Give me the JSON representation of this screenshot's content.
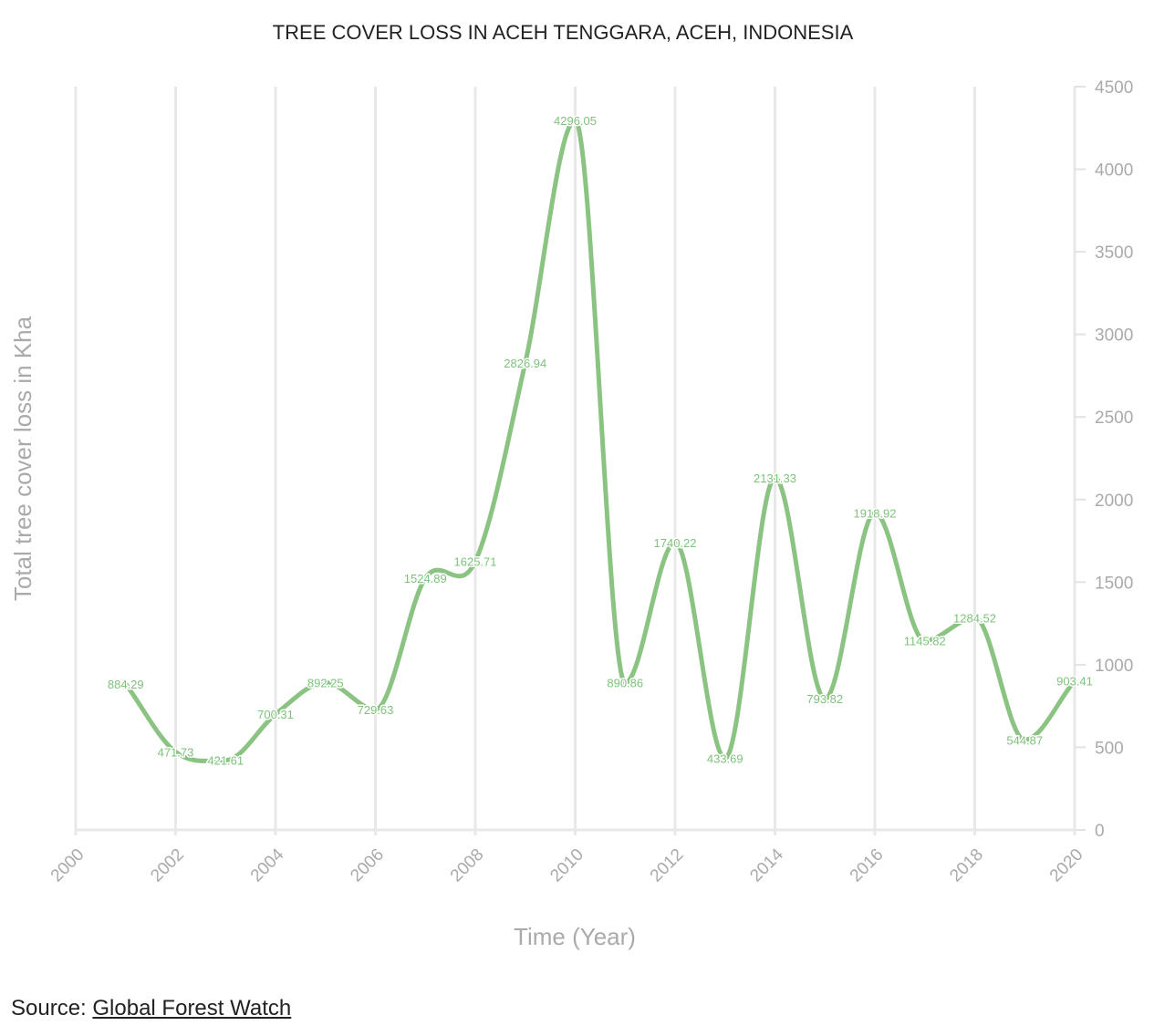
{
  "chart_data": {
    "type": "line",
    "title": "TREE COVER LOSS IN ACEH TENGGARA, ACEH, INDONESIA",
    "xlabel": "Time (Year)",
    "ylabel": "Total tree cover loss in Kha",
    "xlim": [
      2000,
      2020
    ],
    "ylim": [
      0,
      4500
    ],
    "x_ticks": [
      2000,
      2002,
      2004,
      2006,
      2008,
      2010,
      2012,
      2014,
      2016,
      2018,
      2020
    ],
    "y_ticks": [
      0,
      500,
      1000,
      1500,
      2000,
      2500,
      3000,
      3500,
      4000,
      4500
    ],
    "grid": "vertical",
    "y_axis_side": "right",
    "line_color": "#8bc482",
    "series": [
      {
        "x": [
          2001,
          2002,
          2003,
          2004,
          2005,
          2006,
          2007,
          2008,
          2009,
          2010,
          2011,
          2012,
          2013,
          2014,
          2015,
          2016,
          2017,
          2018,
          2019,
          2020
        ],
        "values": [
          884.29,
          471.73,
          421.61,
          700.31,
          892.25,
          729.63,
          1524.89,
          1625.71,
          2826.94,
          4296.05,
          890.86,
          1740.22,
          433.69,
          2131.33,
          793.82,
          1918.92,
          1145.82,
          1284.52,
          544.87,
          903.41
        ]
      }
    ]
  },
  "source": {
    "label": "Source:",
    "link_text": "Global Forest Watch"
  }
}
